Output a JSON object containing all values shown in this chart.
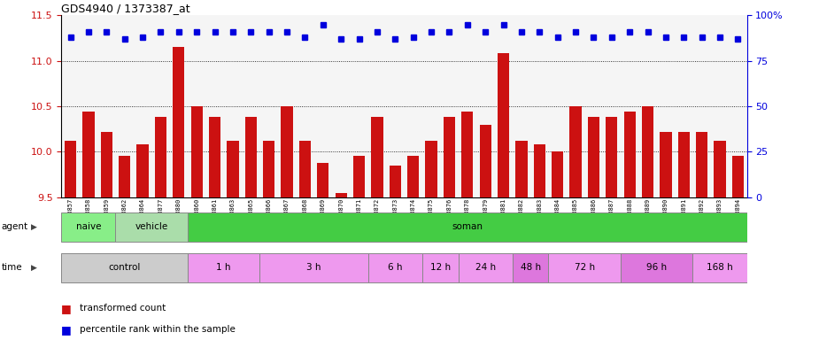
{
  "title": "GDS4940 / 1373387_at",
  "sample_names": [
    "GSM338857",
    "GSM338858",
    "GSM338859",
    "GSM338862",
    "GSM338864",
    "GSM338877",
    "GSM338880",
    "GSM338860",
    "GSM338861",
    "GSM338863",
    "GSM338865",
    "GSM338866",
    "GSM338867",
    "GSM338868",
    "GSM338869",
    "GSM338870",
    "GSM338871",
    "GSM338872",
    "GSM338873",
    "GSM338874",
    "GSM338875",
    "GSM338876",
    "GSM338878",
    "GSM338879",
    "GSM338881",
    "GSM338882",
    "GSM338883",
    "GSM338884",
    "GSM338885",
    "GSM338886",
    "GSM338887",
    "GSM338888",
    "GSM338889",
    "GSM338890",
    "GSM338891",
    "GSM338892",
    "GSM338893",
    "GSM338894"
  ],
  "bar_values": [
    10.12,
    10.44,
    10.22,
    9.95,
    10.08,
    10.38,
    11.15,
    10.5,
    10.38,
    10.12,
    10.38,
    10.12,
    10.5,
    10.12,
    9.88,
    9.55,
    9.95,
    10.38,
    9.85,
    9.95,
    10.12,
    10.38,
    10.44,
    10.3,
    11.08,
    10.12,
    10.08,
    10.0,
    10.5,
    10.38,
    10.38,
    10.44,
    10.5,
    10.22,
    10.22,
    10.22,
    10.12,
    9.95
  ],
  "percentile_values": [
    88,
    91,
    91,
    87,
    88,
    91,
    91,
    91,
    91,
    91,
    91,
    91,
    91,
    88,
    95,
    87,
    87,
    91,
    87,
    88,
    91,
    91,
    95,
    91,
    95,
    91,
    91,
    88,
    91,
    88,
    88,
    91,
    91,
    88,
    88,
    88,
    88,
    87
  ],
  "bar_color": "#cc1111",
  "dot_color": "#0000dd",
  "ylim_left": [
    9.5,
    11.5
  ],
  "yticks_left": [
    9.5,
    10.0,
    10.5,
    11.0,
    11.5
  ],
  "ylim_right": [
    0,
    100
  ],
  "yticks_right": [
    0,
    25,
    50,
    75,
    100
  ],
  "grid_lines": [
    10.0,
    10.5,
    11.0
  ],
  "plot_bg": "#f5f5f5",
  "agent_row": [
    {
      "label": "naive",
      "start": 0,
      "end": 3,
      "color": "#88ee88"
    },
    {
      "label": "vehicle",
      "start": 3,
      "end": 7,
      "color": "#aaddaa"
    },
    {
      "label": "soman",
      "start": 7,
      "end": 38,
      "color": "#44cc44"
    }
  ],
  "time_row": [
    {
      "label": "control",
      "start": 0,
      "end": 7,
      "color": "#cccccc"
    },
    {
      "label": "1 h",
      "start": 7,
      "end": 11,
      "color": "#ee99ee"
    },
    {
      "label": "3 h",
      "start": 11,
      "end": 17,
      "color": "#ee99ee"
    },
    {
      "label": "6 h",
      "start": 17,
      "end": 20,
      "color": "#ee99ee"
    },
    {
      "label": "12 h",
      "start": 20,
      "end": 22,
      "color": "#ee99ee"
    },
    {
      "label": "24 h",
      "start": 22,
      "end": 25,
      "color": "#ee99ee"
    },
    {
      "label": "48 h",
      "start": 25,
      "end": 27,
      "color": "#dd77dd"
    },
    {
      "label": "72 h",
      "start": 27,
      "end": 31,
      "color": "#ee99ee"
    },
    {
      "label": "96 h",
      "start": 31,
      "end": 35,
      "color": "#dd77dd"
    },
    {
      "label": "168 h",
      "start": 35,
      "end": 38,
      "color": "#ee99ee"
    }
  ]
}
